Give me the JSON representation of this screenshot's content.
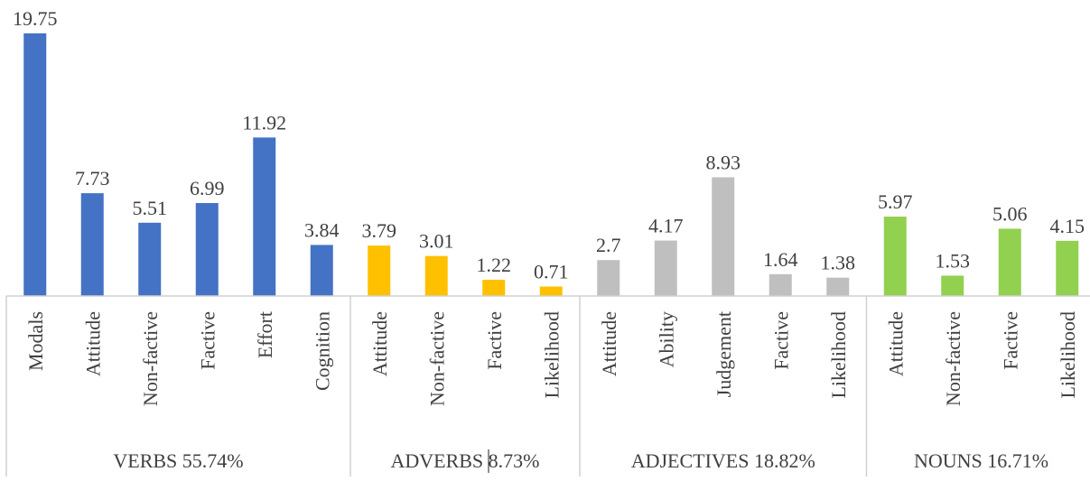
{
  "chart_data": {
    "type": "bar",
    "title": "",
    "xlabel": "",
    "ylabel": "",
    "ylim": [
      0,
      19.75
    ],
    "grid": false,
    "legend": "none",
    "groups": [
      {
        "label": "VERBS 55.74%",
        "color": "#4472C4",
        "categories": [
          "Modals",
          "Attitude",
          "Non-factive",
          "Factive",
          "Effort",
          "Cognition"
        ],
        "values": [
          19.75,
          7.73,
          5.51,
          6.99,
          11.92,
          3.84
        ],
        "value_labels": [
          "19.75",
          "7.73",
          "5.51",
          "6.99",
          "11.92",
          "3.84"
        ]
      },
      {
        "label": "ADVERBS 8.73%",
        "color": "#FFC000",
        "categories": [
          "Attitude",
          "Non-factive",
          "Factive",
          "Likelihood"
        ],
        "values": [
          3.79,
          3.01,
          1.22,
          0.71
        ],
        "value_labels": [
          "3.79",
          "3.01",
          "1.22",
          "0.71"
        ]
      },
      {
        "label": "ADJECTIVES 18.82%",
        "color": "#BFBFBF",
        "categories": [
          "Attitude",
          "Ability",
          "Judgement",
          "Factive",
          "Likelihood"
        ],
        "values": [
          2.7,
          4.17,
          8.93,
          1.64,
          1.38
        ],
        "value_labels": [
          "2.7",
          "4.17",
          "8.93",
          "1.64",
          "1.38"
        ]
      },
      {
        "label": "NOUNS 16.71%",
        "color": "#92D050",
        "categories": [
          "Attitude",
          "Non-factive",
          "Factive",
          "Likelihood"
        ],
        "values": [
          5.97,
          1.53,
          5.06,
          4.15
        ],
        "value_labels": [
          "5.97",
          "1.53",
          "5.06",
          "4.15"
        ]
      }
    ]
  }
}
